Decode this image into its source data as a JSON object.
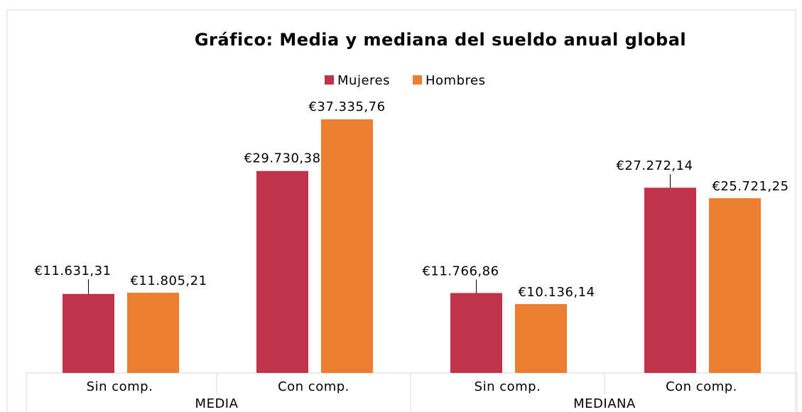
{
  "chart_data": {
    "type": "bar",
    "title": "Gráfico: Media y mediana del sueldo anual global",
    "groups": [
      "MEDIA",
      "MEDIANA"
    ],
    "categories": [
      "Sin comp.",
      "Con comp.",
      "Sin comp.",
      "Con comp."
    ],
    "series": [
      {
        "name": "Mujeres",
        "color": "#c0334a",
        "values": [
          11631.31,
          29730.38,
          11766.86,
          27272.14
        ],
        "value_labels": [
          "€11.631,31",
          "€29.730,38",
          "€11.766,86",
          "€27.272,14"
        ]
      },
      {
        "name": "Hombres",
        "color": "#ed7d31",
        "values": [
          11805.21,
          37335.76,
          10136.14,
          25721.25
        ],
        "value_labels": [
          "€11.805,21",
          "€37.335,76",
          "€10.136,14",
          "€25.721,25"
        ]
      }
    ]
  }
}
